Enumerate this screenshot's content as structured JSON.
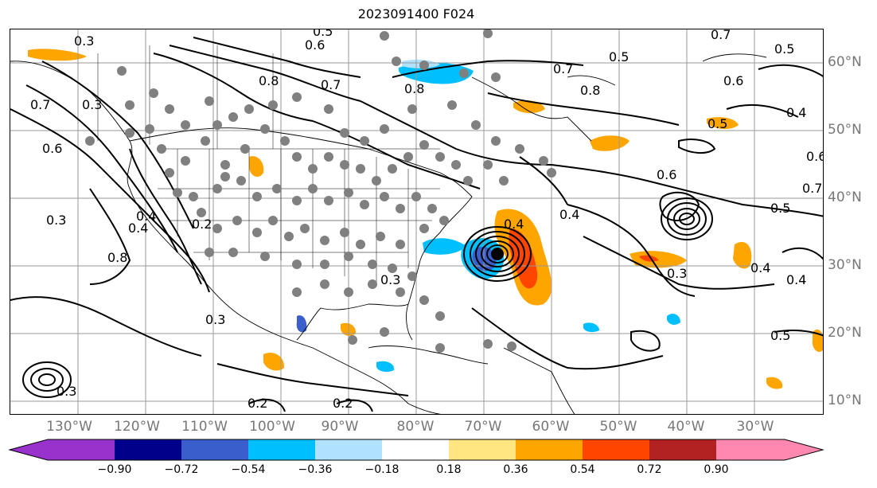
{
  "title": "2023091400 F024",
  "lon_labels": [
    "130°W",
    "120°W",
    "110°W",
    "100°W",
    "90°W",
    "80°W",
    "70°W",
    "60°W",
    "50°W",
    "40°W",
    "30°W"
  ],
  "lat_labels": [
    "60°N",
    "50°N",
    "40°N",
    "30°N",
    "20°N",
    "10°N"
  ],
  "colorbar": {
    "ticks": [
      "−0.90",
      "−0.72",
      "−0.54",
      "−0.36",
      "−0.18",
      "0.18",
      "0.36",
      "0.54",
      "0.72",
      "0.90"
    ],
    "colors": [
      "#9932cc",
      "#00008b",
      "#3a5fcd",
      "#00bfff",
      "#b0e2ff",
      "#ffffff",
      "#ffe680",
      "#ffa500",
      "#ff4500",
      "#b22222",
      "#ff88b0"
    ]
  },
  "contour_labels": [
    {
      "text": "0.3"
    },
    {
      "text": "0.6"
    },
    {
      "text": "0.5"
    },
    {
      "text": "0.8"
    },
    {
      "text": "0.7"
    },
    {
      "text": "0.8"
    },
    {
      "text": "0.5"
    },
    {
      "text": "0.7"
    },
    {
      "text": "0.8"
    },
    {
      "text": "0.7"
    },
    {
      "text": "0.6"
    },
    {
      "text": "0.5"
    },
    {
      "text": "0.5"
    },
    {
      "text": "0.4"
    },
    {
      "text": "0.6"
    },
    {
      "text": "0.6"
    },
    {
      "text": "0.4"
    },
    {
      "text": "0.5"
    },
    {
      "text": "0.7"
    },
    {
      "text": "0.4"
    },
    {
      "text": "0.3"
    },
    {
      "text": "0.4"
    },
    {
      "text": "0.5"
    },
    {
      "text": "0.7"
    },
    {
      "text": "0.6"
    },
    {
      "text": "0.3"
    },
    {
      "text": "0.8"
    },
    {
      "text": "0.4"
    },
    {
      "text": "0.2"
    },
    {
      "text": "0.3"
    },
    {
      "text": "0.3"
    },
    {
      "text": "0.3"
    },
    {
      "text": "0.2"
    },
    {
      "text": "0.2"
    },
    {
      "text": "0.4"
    },
    {
      "text": "0.3"
    },
    {
      "text": "0.4"
    }
  ]
}
